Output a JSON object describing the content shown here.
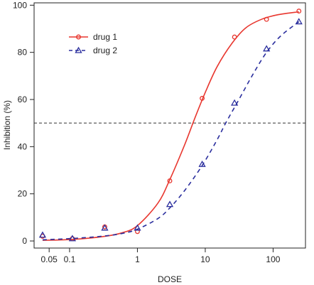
{
  "chart_data": {
    "type": "line",
    "xlabel": "DOSE",
    "ylabel": "Inhibition (%)",
    "xscale": "log",
    "xlim": [
      0.03,
      300
    ],
    "ylim": [
      -3,
      101
    ],
    "xticks": [
      0.05,
      0.1,
      1,
      10,
      100
    ],
    "xtick_labels": [
      "0.05",
      "0.1",
      "1",
      "10",
      "100"
    ],
    "yticks": [
      0,
      20,
      40,
      60,
      80,
      100
    ],
    "ytick_labels": [
      "0",
      "20",
      "40",
      "60",
      "80",
      "100"
    ],
    "reference_line": {
      "y": 50,
      "style": "dashed",
      "color": "#333333"
    },
    "legend_position": "top-left",
    "series": [
      {
        "name": "drug 1",
        "color": "#e8372f",
        "line_style": "solid",
        "marker": "circle",
        "points": [
          {
            "x": 0.04,
            "y": 2
          },
          {
            "x": 0.11,
            "y": 1
          },
          {
            "x": 0.33,
            "y": 6
          },
          {
            "x": 1.0,
            "y": 4
          },
          {
            "x": 3.0,
            "y": 25.5
          },
          {
            "x": 9.0,
            "y": 60.5
          },
          {
            "x": 27,
            "y": 86.5
          },
          {
            "x": 80,
            "y": 94
          },
          {
            "x": 240,
            "y": 97.5
          }
        ],
        "curve": [
          {
            "x": 0.04,
            "y": 0.3
          },
          {
            "x": 0.1,
            "y": 0.6
          },
          {
            "x": 0.3,
            "y": 1.8
          },
          {
            "x": 0.6,
            "y": 3.5
          },
          {
            "x": 1.0,
            "y": 6.5
          },
          {
            "x": 2.0,
            "y": 16
          },
          {
            "x": 3.0,
            "y": 26
          },
          {
            "x": 5.0,
            "y": 41
          },
          {
            "x": 7.0,
            "y": 52
          },
          {
            "x": 10,
            "y": 63
          },
          {
            "x": 15,
            "y": 74
          },
          {
            "x": 25,
            "y": 84
          },
          {
            "x": 40,
            "y": 90.5
          },
          {
            "x": 70,
            "y": 94.2
          },
          {
            "x": 120,
            "y": 96
          },
          {
            "x": 240,
            "y": 97.2
          }
        ]
      },
      {
        "name": "drug 2",
        "color": "#2b2f9e",
        "line_style": "dashed",
        "marker": "triangle",
        "points": [
          {
            "x": 0.04,
            "y": 2.5
          },
          {
            "x": 0.11,
            "y": 1
          },
          {
            "x": 0.33,
            "y": 5.5
          },
          {
            "x": 1.0,
            "y": 5.5
          },
          {
            "x": 3.0,
            "y": 15.5
          },
          {
            "x": 9.0,
            "y": 32.5
          },
          {
            "x": 27,
            "y": 58.5
          },
          {
            "x": 80,
            "y": 81.5
          },
          {
            "x": 240,
            "y": 93
          }
        ],
        "curve": [
          {
            "x": 0.04,
            "y": 0.5
          },
          {
            "x": 0.1,
            "y": 1.0
          },
          {
            "x": 0.3,
            "y": 2.0
          },
          {
            "x": 0.6,
            "y": 3.2
          },
          {
            "x": 1.0,
            "y": 5.0
          },
          {
            "x": 2.0,
            "y": 9.5
          },
          {
            "x": 3.0,
            "y": 14
          },
          {
            "x": 5.0,
            "y": 21.5
          },
          {
            "x": 9.0,
            "y": 32
          },
          {
            "x": 15,
            "y": 43
          },
          {
            "x": 20,
            "y": 50
          },
          {
            "x": 30,
            "y": 59
          },
          {
            "x": 50,
            "y": 70.5
          },
          {
            "x": 80,
            "y": 80
          },
          {
            "x": 130,
            "y": 87
          },
          {
            "x": 240,
            "y": 93
          }
        ]
      }
    ]
  }
}
